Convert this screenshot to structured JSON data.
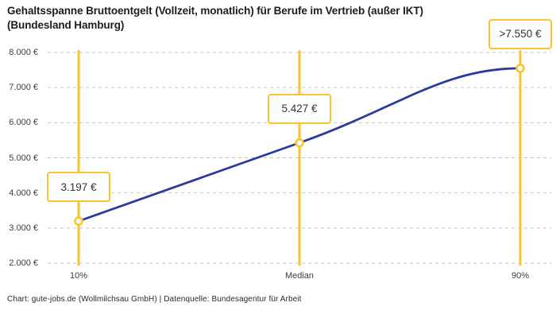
{
  "title": {
    "line1": "Gehaltsspanne Bruttoentgelt (Vollzeit, monatlich) für Berufe im Vertrieb (außer IKT)",
    "line2": "(Bundesland Hamburg)"
  },
  "footer": {
    "source": "Chart: gute-jobs.de (Wollmilchsau GmbH) | Datenquelle: Bundesagentur für Arbeit"
  },
  "chart_data": {
    "type": "line",
    "title": "Gehaltsspanne Bruttoentgelt (Vollzeit, monatlich) für Berufe im Vertrieb (außer IKT) (Bundesland Hamburg)",
    "categories": [
      "10%",
      "Median",
      "90%"
    ],
    "values": [
      3197,
      5427,
      7550
    ],
    "point_labels": [
      "3.197 €",
      "5.427 €",
      ">7.550 €"
    ],
    "last_value_open_ended": true,
    "xlabel": "",
    "ylabel": "",
    "ylim": [
      2000,
      8000
    ],
    "y_ticks": [
      2000,
      3000,
      4000,
      5000,
      6000,
      7000,
      8000
    ],
    "y_tick_labels": [
      "2.000 €",
      "3.000 €",
      "4.000 €",
      "5.000 €",
      "6.000 €",
      "7.000 €",
      "8.000 €"
    ],
    "grid": "horizontal-dashed",
    "legend": "none",
    "annotations": "vertical percentile range lines at each category"
  },
  "colors": {
    "line_blue": "#2a3b9e",
    "accent_yellow": "#fcc32c",
    "grid_gray": "#c6c6c6",
    "tick_gray": "#3d3d3d",
    "title_dark": "#1d1d1d",
    "label_text": "#333333",
    "background": "#ffffff"
  }
}
